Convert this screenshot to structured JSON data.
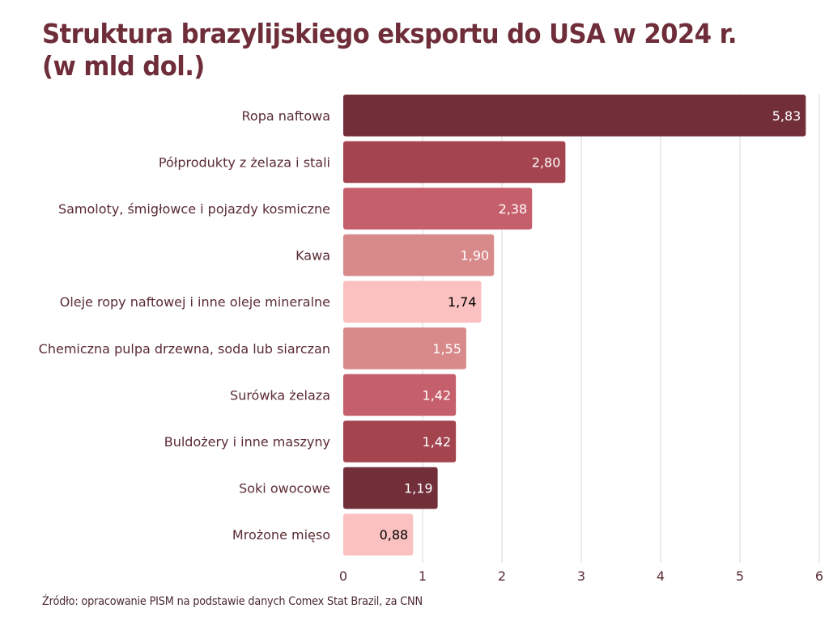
{
  "title": {
    "line1": "Struktura brazylijskiego eksportu do USA w 2024 r.",
    "line2": "(w mld dol.)"
  },
  "source": "Źródło: opracowanie PISM na podstawie danych Comex Stat Brazil, za CNN",
  "colors": {
    "title": "#6e2d38",
    "gridline": "#d9d9d9"
  },
  "chart_data": {
    "type": "bar",
    "orientation": "horizontal",
    "title": "Struktura brazylijskiego eksportu do USA w 2024 r. (w mld dol.)",
    "xlabel": "",
    "ylabel": "",
    "xlim": [
      0,
      6
    ],
    "grid": true,
    "ticks": [
      "0",
      "1",
      "2",
      "3",
      "4",
      "5",
      "6"
    ],
    "tick_values": [
      0,
      1,
      2,
      3,
      4,
      5,
      6
    ],
    "categories": [
      "Ropa naftowa",
      "Półprodukty z żelaza i stali",
      "Samoloty, śmigłowce i pojazdy kosmiczne",
      "Kawa",
      "Oleje ropy naftowej i inne oleje mineralne",
      "Chemiczna pulpa drzewna, soda lub siarczan",
      "Surówka żelaza",
      "Buldożery i inne maszyny",
      "Soki owocowe",
      "Mrożone mięso"
    ],
    "values": [
      5.83,
      2.8,
      2.38,
      1.9,
      1.74,
      1.55,
      1.42,
      1.42,
      1.19,
      0.88
    ],
    "value_labels": [
      "5,83",
      "2,80",
      "2,38",
      "1,90",
      "1,74",
      "1,55",
      "1,42",
      "1,42",
      "1,19",
      "0,88"
    ],
    "bar_colors": [
      "#722f3a",
      "#a3444f",
      "#c55f6b",
      "#d88a8a",
      "#fbc1c1",
      "#d88a8a",
      "#c55f6b",
      "#a3444f",
      "#722f3a",
      "#fbc1c1"
    ],
    "label_colors": [
      "#ffffff",
      "#ffffff",
      "#ffffff",
      "#ffffff",
      "#000000",
      "#ffffff",
      "#ffffff",
      "#ffffff",
      "#ffffff",
      "#000000"
    ]
  }
}
